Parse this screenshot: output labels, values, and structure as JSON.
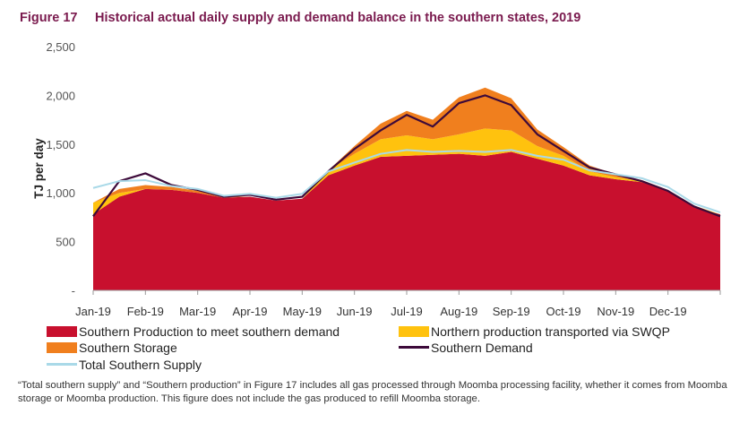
{
  "figure_label": "Figure 17",
  "figure_title": "Historical actual daily supply and demand balance in the southern states, 2019",
  "note": "“Total southern supply” and “Southern production” in Figure 17 includes all gas processed through Moomba processing facility, whether it comes from Moomba storage or Moomba production. This figure does not include the gas produced to refill Moomba storage.",
  "colors": {
    "southern_production": "#c8102e",
    "northern_production": "#ffc20e",
    "southern_storage": "#f07f1e",
    "southern_demand": "#3d0a3a",
    "total_supply": "#a9d9e8"
  },
  "legend": [
    {
      "label": "Southern Production to meet southern demand",
      "kind": "fill",
      "color": "#c8102e"
    },
    {
      "label": "Northern production transported via SWQP",
      "kind": "fill",
      "color": "#ffc20e"
    },
    {
      "label": "Southern Storage",
      "kind": "fill",
      "color": "#f07f1e"
    },
    {
      "label": "Southern Demand",
      "kind": "line",
      "color": "#3d0a3a"
    },
    {
      "label": "Total Southern Supply",
      "kind": "line",
      "color": "#a9d9e8"
    }
  ],
  "chart_data": {
    "type": "area",
    "title": "Historical actual daily supply and demand balance in the southern states, 2019",
    "xlabel": "",
    "ylabel": "TJ per day",
    "ylim": [
      0,
      2500
    ],
    "yticks": [
      0,
      500,
      1000,
      1500,
      2000,
      2500
    ],
    "ytick_labels": [
      "-",
      "500",
      "1,000",
      "1,500",
      "2,000",
      "2,500"
    ],
    "categories": [
      "Jan-19",
      "Feb-19",
      "Mar-19",
      "Apr-19",
      "May-19",
      "Jun-19",
      "Jul-19",
      "Aug-19",
      "Sep-19",
      "Oct-19",
      "Nov-19",
      "Dec-19"
    ],
    "x_unit": "half-month",
    "x": [
      0,
      0.5,
      1,
      1.5,
      2,
      2.5,
      3,
      3.5,
      4,
      4.5,
      5,
      5.5,
      6,
      6.5,
      7,
      7.5,
      8,
      8.5,
      9,
      9.5,
      10,
      10.5,
      11,
      11.5,
      12
    ],
    "series": [
      {
        "name": "Southern Production to meet southern demand",
        "kind": "stacked-area",
        "values": [
          780,
          960,
          1040,
          1030,
          1000,
          950,
          960,
          920,
          940,
          1180,
          1280,
          1370,
          1380,
          1390,
          1400,
          1380,
          1420,
          1350,
          1280,
          1180,
          1140,
          1110,
          1030,
          850,
          780
        ]
      },
      {
        "name": "Northern production transported via SWQP",
        "kind": "stacked-area",
        "values": [
          120,
          40,
          0,
          0,
          0,
          0,
          0,
          0,
          0,
          50,
          120,
          180,
          210,
          160,
          200,
          280,
          220,
          130,
          100,
          40,
          20,
          10,
          0,
          20,
          0
        ]
      },
      {
        "name": "Southern Storage",
        "kind": "stacked-area",
        "values": [
          0,
          40,
          40,
          30,
          20,
          10,
          0,
          0,
          0,
          0,
          80,
          160,
          250,
          200,
          380,
          420,
          330,
          170,
          90,
          60,
          30,
          10,
          0,
          0,
          0
        ]
      },
      {
        "name": "Southern Demand",
        "kind": "line",
        "values": [
          760,
          1120,
          1200,
          1080,
          1030,
          960,
          980,
          930,
          960,
          1220,
          1450,
          1640,
          1800,
          1680,
          1920,
          2000,
          1900,
          1600,
          1430,
          1260,
          1190,
          1120,
          1020,
          860,
          760
        ]
      },
      {
        "name": "Total Southern Supply",
        "kind": "line",
        "values": [
          1050,
          1120,
          1130,
          1070,
          1040,
          970,
          990,
          950,
          990,
          1220,
          1310,
          1400,
          1440,
          1420,
          1430,
          1420,
          1440,
          1380,
          1340,
          1230,
          1190,
          1150,
          1060,
          890,
          800
        ]
      }
    ]
  }
}
